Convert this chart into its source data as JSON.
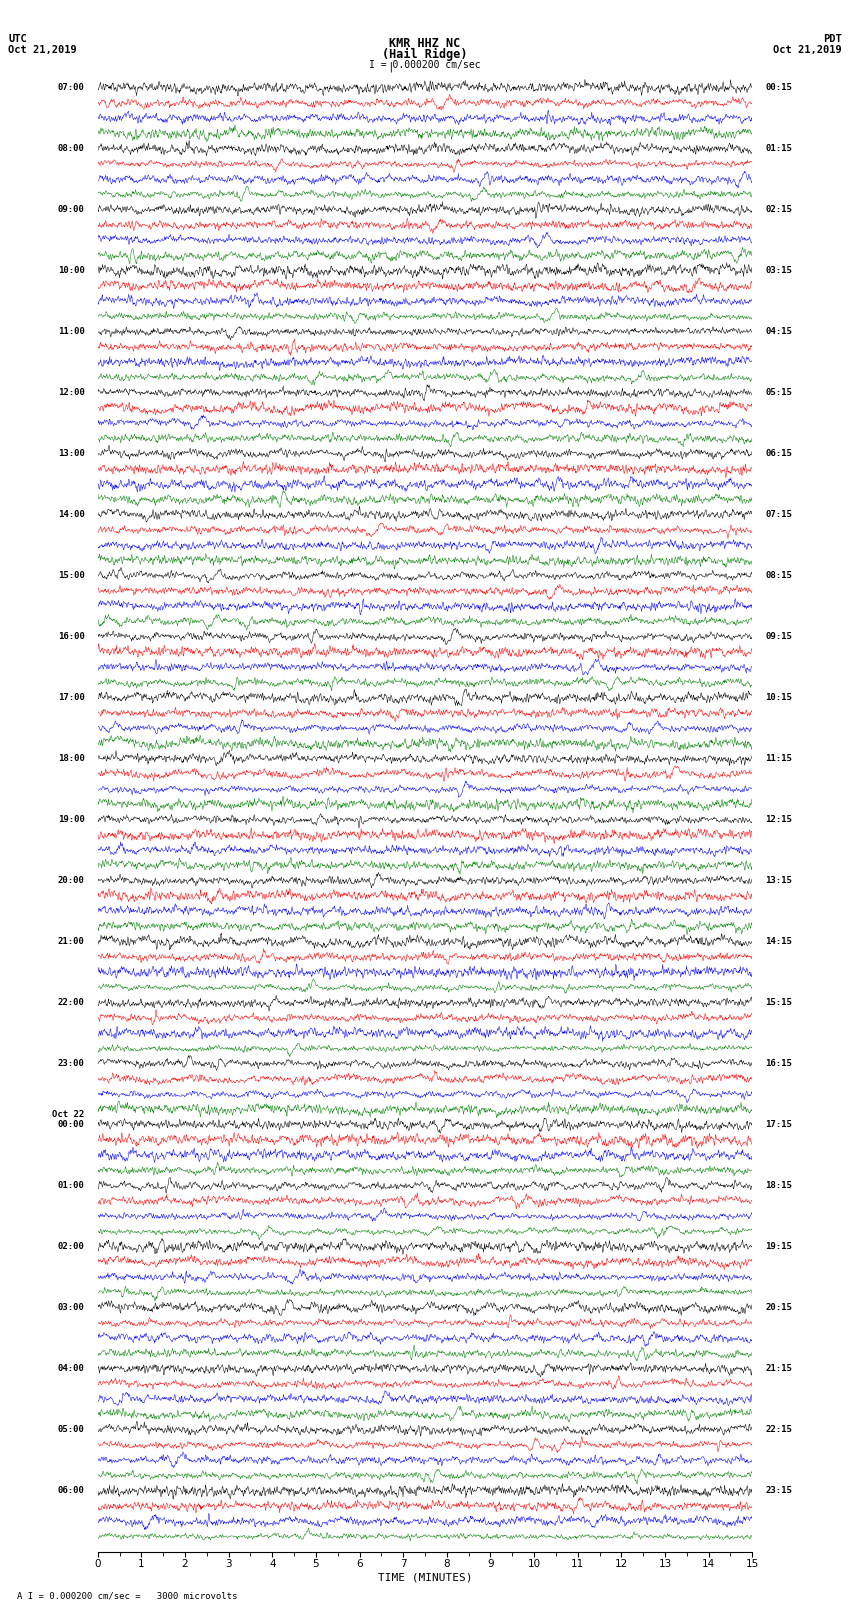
{
  "title_line1": "KMR HHZ NC",
  "title_line2": "(Hail Ridge)",
  "scale_label": "I = 0.000200 cm/sec",
  "left_date_top": "Oct 21,2019",
  "right_date_top": "Oct 21,2019",
  "left_tz": "UTC",
  "right_tz": "PDT",
  "xlabel": "TIME (MINUTES)",
  "bottom_label": "A I = 0.000200 cm/sec =   3000 microvolts",
  "xlim": [
    0,
    15
  ],
  "xticks": [
    0,
    1,
    2,
    3,
    4,
    5,
    6,
    7,
    8,
    9,
    10,
    11,
    12,
    13,
    14,
    15
  ],
  "background_color": "#ffffff",
  "trace_colors": [
    "black",
    "red",
    "blue",
    "green"
  ],
  "left_hour_labels": [
    "07:00",
    "08:00",
    "09:00",
    "10:00",
    "11:00",
    "12:00",
    "13:00",
    "14:00",
    "15:00",
    "16:00",
    "17:00",
    "18:00",
    "19:00",
    "20:00",
    "21:00",
    "22:00",
    "23:00",
    "Oct 22",
    "00:00",
    "01:00",
    "02:00",
    "03:00",
    "04:00",
    "05:00",
    "06:00"
  ],
  "left_hour_label_rows": [
    0,
    4,
    8,
    12,
    16,
    20,
    24,
    28,
    32,
    36,
    40,
    44,
    48,
    52,
    56,
    60,
    64,
    68,
    68,
    72,
    76,
    80,
    84,
    88,
    92
  ],
  "right_hour_labels": [
    "00:15",
    "01:15",
    "02:15",
    "03:15",
    "04:15",
    "05:15",
    "06:15",
    "07:15",
    "08:15",
    "09:15",
    "10:15",
    "11:15",
    "12:15",
    "13:15",
    "14:15",
    "15:15",
    "16:15",
    "17:15",
    "18:15",
    "19:15",
    "20:15",
    "21:15",
    "22:15",
    "23:15"
  ],
  "right_hour_label_rows": [
    0,
    4,
    8,
    12,
    16,
    20,
    24,
    28,
    32,
    36,
    40,
    44,
    48,
    52,
    56,
    60,
    64,
    68,
    72,
    76,
    80,
    84,
    88,
    92
  ],
  "n_rows": 96,
  "n_points": 1800,
  "amplitude": 0.55,
  "seed": 42
}
